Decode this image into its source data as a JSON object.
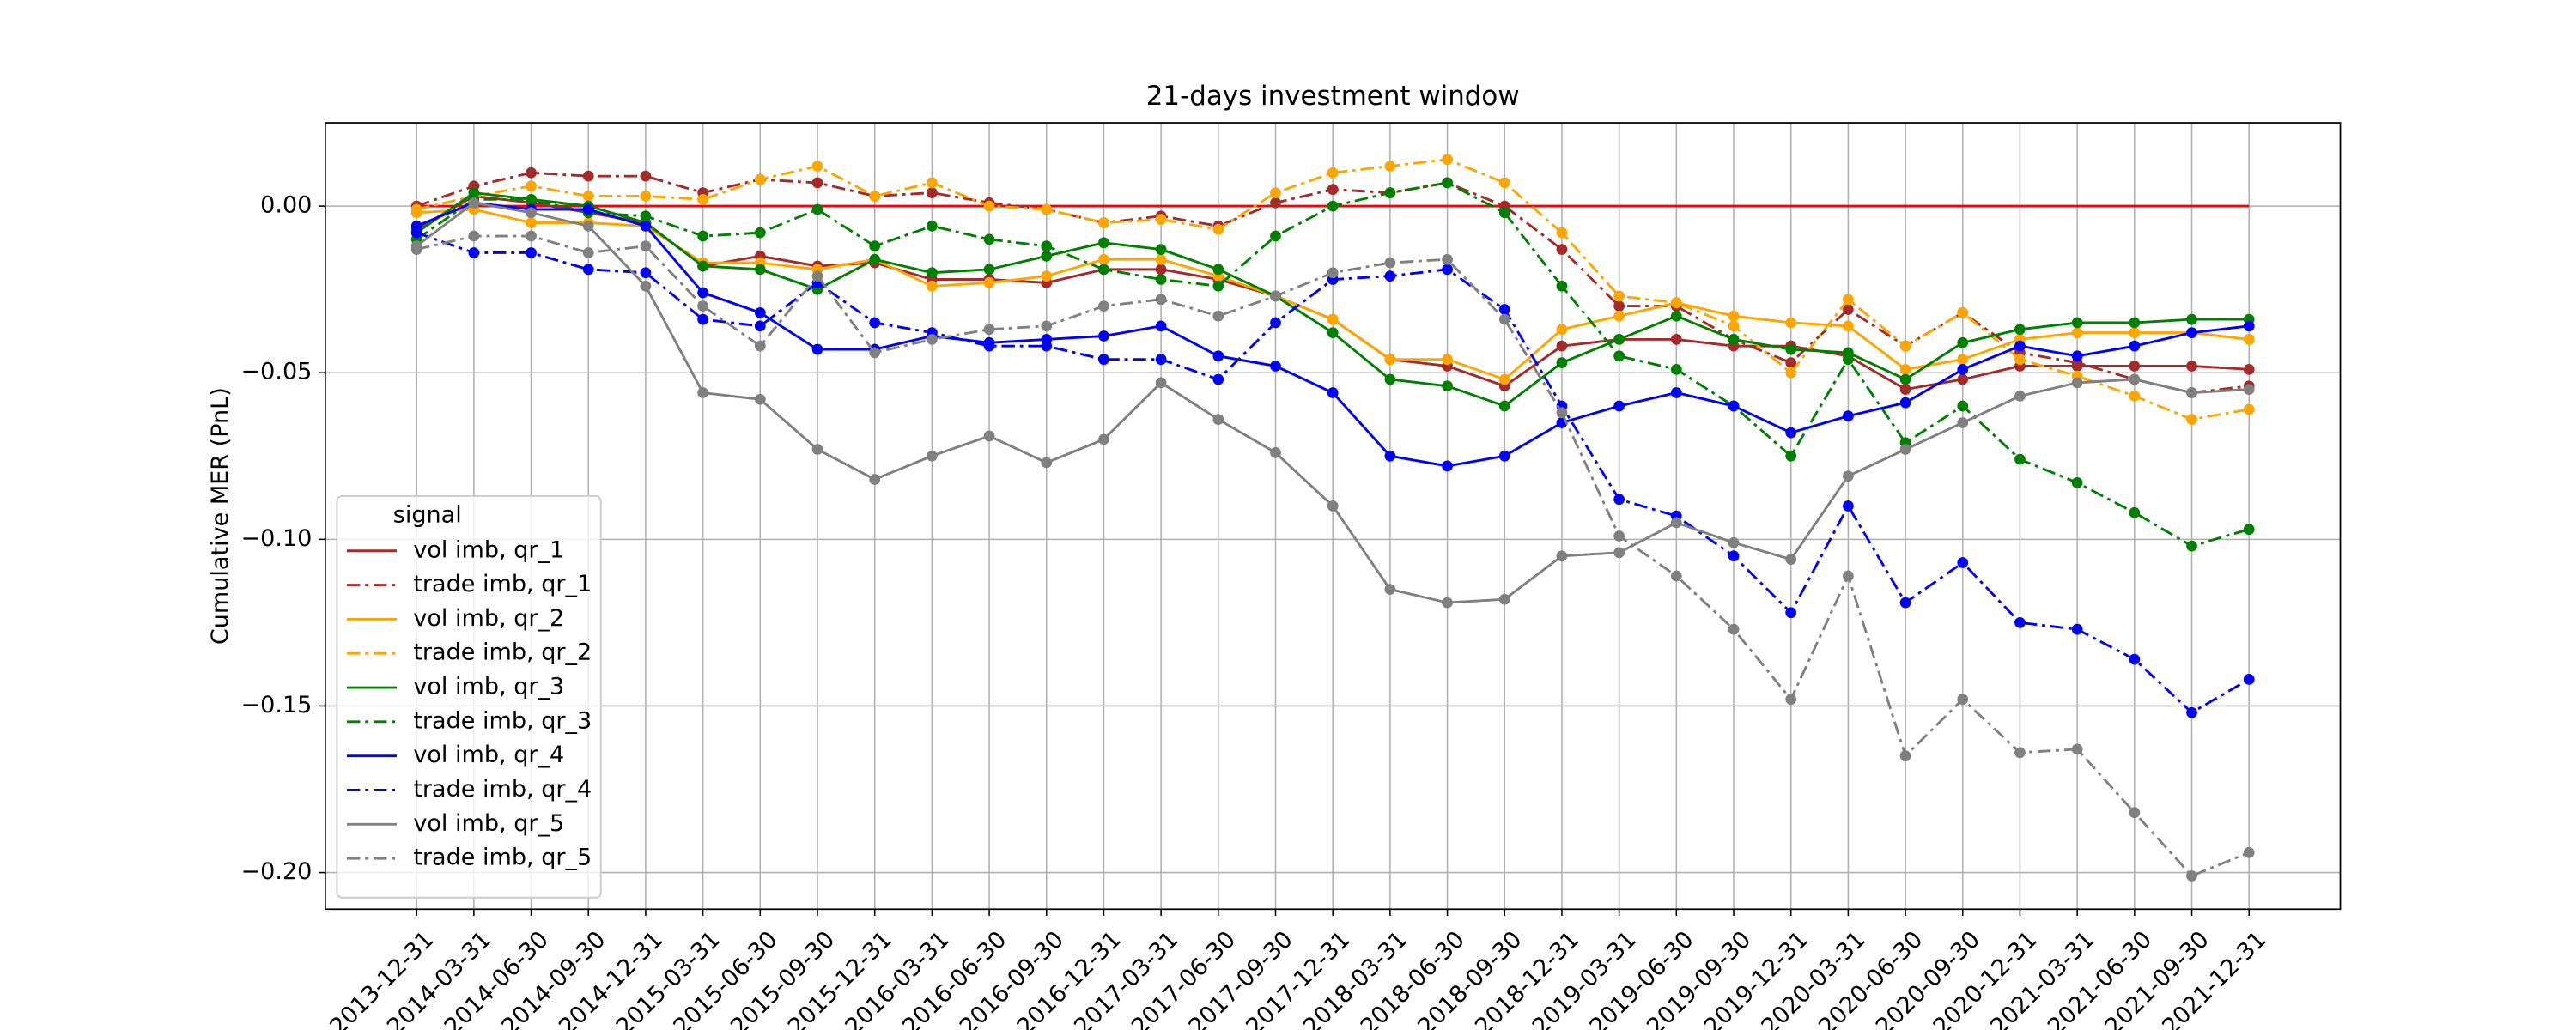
{
  "chart_data": {
    "type": "line",
    "title": "21-days investment window",
    "y_label": "Cumulative MER (PnL)",
    "categories": [
      "2013-12-31",
      "2014-03-31",
      "2014-06-30",
      "2014-09-30",
      "2014-12-31",
      "2015-03-31",
      "2015-06-30",
      "2015-09-30",
      "2015-12-31",
      "2016-03-31",
      "2016-06-30",
      "2016-09-30",
      "2016-12-31",
      "2017-03-31",
      "2017-06-30",
      "2017-09-30",
      "2017-12-31",
      "2018-03-31",
      "2018-06-30",
      "2018-09-30",
      "2018-12-31",
      "2019-03-31",
      "2019-06-30",
      "2019-09-30",
      "2019-12-31",
      "2020-03-31",
      "2020-06-30",
      "2020-09-30",
      "2020-12-31",
      "2021-03-31",
      "2021-06-30",
      "2021-09-30",
      "2021-12-31"
    ],
    "ylim": [
      -0.211,
      0.025
    ],
    "yticks": [
      {
        "value": 0,
        "label": "0.00"
      },
      {
        "value": -0.05,
        "label": "−0.05"
      },
      {
        "value": -0.1,
        "label": "−0.10"
      },
      {
        "value": -0.15,
        "label": "−0.15"
      },
      {
        "value": -0.2,
        "label": "−0.20"
      }
    ],
    "grid": true,
    "markers": true,
    "hline": {
      "value": 0,
      "color": "#ff0000"
    },
    "legend": {
      "title": "signal",
      "loc": "lower left"
    },
    "series": [
      {
        "name": "vol imb, qr_1",
        "color": "#a52a2a",
        "dash": "solid",
        "values": [
          -0.007,
          0.003,
          0.001,
          -0.002,
          -0.005,
          -0.018,
          -0.015,
          -0.018,
          -0.017,
          -0.022,
          -0.022,
          -0.023,
          -0.019,
          -0.019,
          -0.022,
          -0.027,
          -0.034,
          -0.046,
          -0.048,
          -0.054,
          -0.042,
          -0.04,
          -0.04,
          -0.042,
          -0.042,
          -0.045,
          -0.055,
          -0.052,
          -0.048,
          -0.048,
          -0.048,
          -0.048,
          -0.049
        ]
      },
      {
        "name": "trade imb, qr_1",
        "color": "#a52a2a",
        "dash": "dashdot",
        "values": [
          0.0,
          0.006,
          0.01,
          0.009,
          0.009,
          0.004,
          0.008,
          0.007,
          0.003,
          0.004,
          0.001,
          -0.001,
          -0.005,
          -0.003,
          -0.006,
          0.001,
          0.005,
          0.004,
          0.007,
          0.0,
          -0.013,
          -0.03,
          -0.03,
          -0.04,
          -0.047,
          -0.031,
          -0.042,
          -0.032,
          -0.044,
          -0.047,
          -0.052,
          -0.056,
          -0.054
        ]
      },
      {
        "name": "vol imb, qr_2",
        "color": "#ffa500",
        "dash": "solid",
        "values": [
          -0.002,
          -0.001,
          -0.005,
          -0.005,
          -0.006,
          -0.017,
          -0.017,
          -0.019,
          -0.016,
          -0.024,
          -0.023,
          -0.021,
          -0.016,
          -0.016,
          -0.021,
          -0.027,
          -0.034,
          -0.046,
          -0.046,
          -0.052,
          -0.037,
          -0.033,
          -0.029,
          -0.033,
          -0.035,
          -0.036,
          -0.049,
          -0.046,
          -0.04,
          -0.038,
          -0.038,
          -0.038,
          -0.04
        ]
      },
      {
        "name": "trade imb, qr_2",
        "color": "#ffa500",
        "dash": "dashdot",
        "values": [
          -0.001,
          0.003,
          0.006,
          0.003,
          0.003,
          0.002,
          0.008,
          0.012,
          0.003,
          0.007,
          0.0,
          -0.001,
          -0.005,
          -0.004,
          -0.007,
          0.004,
          0.01,
          0.012,
          0.014,
          0.007,
          -0.008,
          -0.027,
          -0.029,
          -0.036,
          -0.05,
          -0.028,
          -0.042,
          -0.032,
          -0.046,
          -0.051,
          -0.057,
          -0.064,
          -0.061
        ]
      },
      {
        "name": "vol imb, qr_3",
        "color": "#008000",
        "dash": "solid",
        "values": [
          -0.008,
          0.004,
          0.002,
          0.0,
          -0.005,
          -0.018,
          -0.019,
          -0.025,
          -0.016,
          -0.02,
          -0.019,
          -0.015,
          -0.011,
          -0.013,
          -0.019,
          -0.027,
          -0.038,
          -0.052,
          -0.054,
          -0.06,
          -0.047,
          -0.04,
          -0.033,
          -0.04,
          -0.043,
          -0.044,
          -0.052,
          -0.041,
          -0.037,
          -0.035,
          -0.035,
          -0.034,
          -0.034
        ]
      },
      {
        "name": "trade imb, qr_3",
        "color": "#008000",
        "dash": "dashdot",
        "values": [
          -0.01,
          0.002,
          0.002,
          -0.002,
          -0.003,
          -0.009,
          -0.008,
          -0.001,
          -0.012,
          -0.006,
          -0.01,
          -0.012,
          -0.019,
          -0.022,
          -0.024,
          -0.009,
          0.0,
          0.004,
          0.007,
          -0.002,
          -0.024,
          -0.045,
          -0.049,
          -0.06,
          -0.075,
          -0.046,
          -0.071,
          -0.06,
          -0.076,
          -0.083,
          -0.092,
          -0.102,
          -0.097
        ]
      },
      {
        "name": "vol imb, qr_4",
        "color": "#0000ff",
        "dash": "solid",
        "values": [
          -0.006,
          0.001,
          -0.001,
          -0.001,
          -0.006,
          -0.026,
          -0.032,
          -0.043,
          -0.043,
          -0.039,
          -0.041,
          -0.04,
          -0.039,
          -0.036,
          -0.045,
          -0.048,
          -0.056,
          -0.075,
          -0.078,
          -0.075,
          -0.065,
          -0.06,
          -0.056,
          -0.06,
          -0.068,
          -0.063,
          -0.059,
          -0.049,
          -0.042,
          -0.045,
          -0.042,
          -0.038,
          -0.036
        ]
      },
      {
        "name": "trade imb, qr_4",
        "color": "#0000ff",
        "dash": "dashdot",
        "values": [
          -0.008,
          -0.014,
          -0.014,
          -0.019,
          -0.02,
          -0.034,
          -0.036,
          -0.023,
          -0.035,
          -0.038,
          -0.042,
          -0.042,
          -0.046,
          -0.046,
          -0.052,
          -0.035,
          -0.022,
          -0.021,
          -0.019,
          -0.031,
          -0.06,
          -0.088,
          -0.093,
          -0.105,
          -0.122,
          -0.09,
          -0.119,
          -0.107,
          -0.125,
          -0.127,
          -0.136,
          -0.152,
          -0.142
        ]
      },
      {
        "name": "vol imb, qr_5",
        "color": "#808080",
        "dash": "solid",
        "values": [
          -0.012,
          0.001,
          -0.002,
          -0.006,
          -0.024,
          -0.056,
          -0.058,
          -0.073,
          -0.082,
          -0.075,
          -0.069,
          -0.077,
          -0.07,
          -0.053,
          -0.064,
          -0.074,
          -0.09,
          -0.115,
          -0.119,
          -0.118,
          -0.105,
          -0.104,
          -0.095,
          -0.101,
          -0.106,
          -0.081,
          -0.073,
          -0.065,
          -0.057,
          -0.053,
          -0.052,
          -0.056,
          -0.055
        ]
      },
      {
        "name": "trade imb, qr_5",
        "color": "#808080",
        "dash": "dashdot",
        "values": [
          -0.013,
          -0.009,
          -0.009,
          -0.014,
          -0.012,
          -0.03,
          -0.042,
          -0.021,
          -0.044,
          -0.04,
          -0.037,
          -0.036,
          -0.03,
          -0.028,
          -0.033,
          -0.027,
          -0.02,
          -0.017,
          -0.016,
          -0.034,
          -0.062,
          -0.099,
          -0.111,
          -0.127,
          -0.148,
          -0.111,
          -0.165,
          -0.148,
          -0.164,
          -0.163,
          -0.182,
          -0.201,
          -0.194
        ]
      }
    ]
  }
}
